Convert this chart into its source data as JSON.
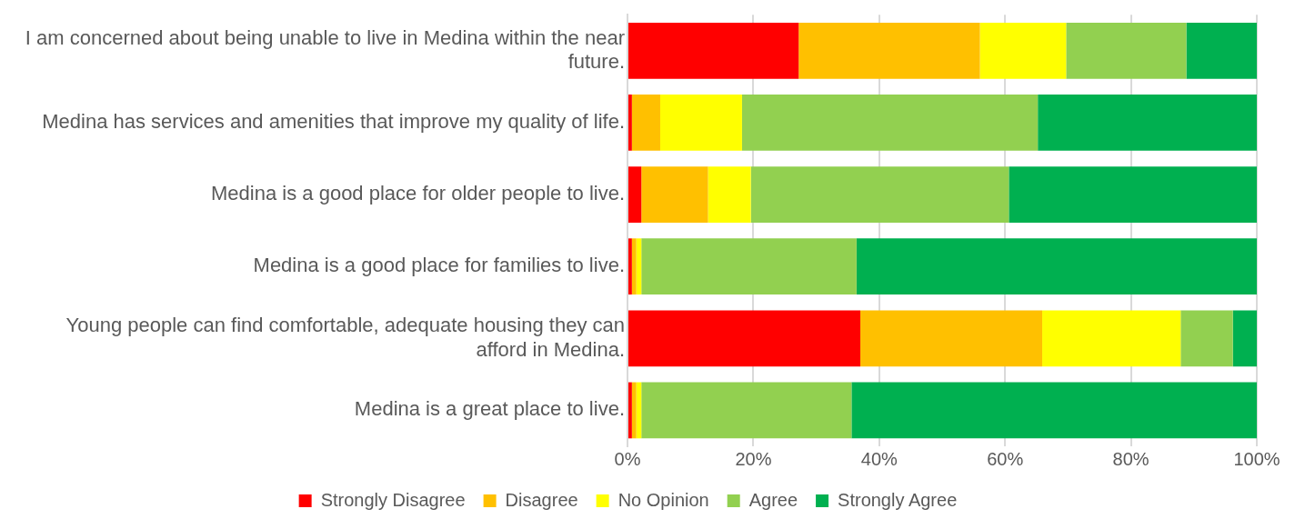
{
  "chart_data": {
    "type": "bar",
    "orientation": "horizontal",
    "stacked": true,
    "categories": [
      "I am concerned about being unable to live in Medina within the near future.",
      "Medina has services and amenities that improve my quality of life.",
      "Medina is a good place for older people to live.",
      "Medina is a good place for families to live.",
      "Young people can find comfortable, adequate housing they can afford in Medina.",
      "Medina is a great place to live."
    ],
    "series": [
      {
        "name": "Strongly Disagree",
        "color": "#ff0000",
        "values": [
          27.2,
          0.7,
          2.2,
          0.7,
          37.0,
          0.7
        ]
      },
      {
        "name": "Disagree",
        "color": "#ffc000",
        "values": [
          28.8,
          4.5,
          10.6,
          0.7,
          28.9,
          0.7
        ]
      },
      {
        "name": "No Opinion",
        "color": "#ffff00",
        "values": [
          13.7,
          13.0,
          6.8,
          0.8,
          22.0,
          0.8
        ]
      },
      {
        "name": "Agree",
        "color": "#92d050",
        "values": [
          19.1,
          47.0,
          41.0,
          34.2,
          8.3,
          33.4
        ]
      },
      {
        "name": "Strongly Agree",
        "color": "#00b050",
        "values": [
          11.2,
          34.8,
          39.4,
          63.6,
          3.8,
          64.4
        ]
      }
    ],
    "xlim": [
      0,
      100
    ],
    "xticks": [
      {
        "value": 0,
        "label": "0%"
      },
      {
        "value": 20,
        "label": "20%"
      },
      {
        "value": 40,
        "label": "40%"
      },
      {
        "value": 60,
        "label": "60%"
      },
      {
        "value": 80,
        "label": "80%"
      },
      {
        "value": 100,
        "label": "100%"
      }
    ],
    "grid": "x",
    "legend": "bottom"
  }
}
